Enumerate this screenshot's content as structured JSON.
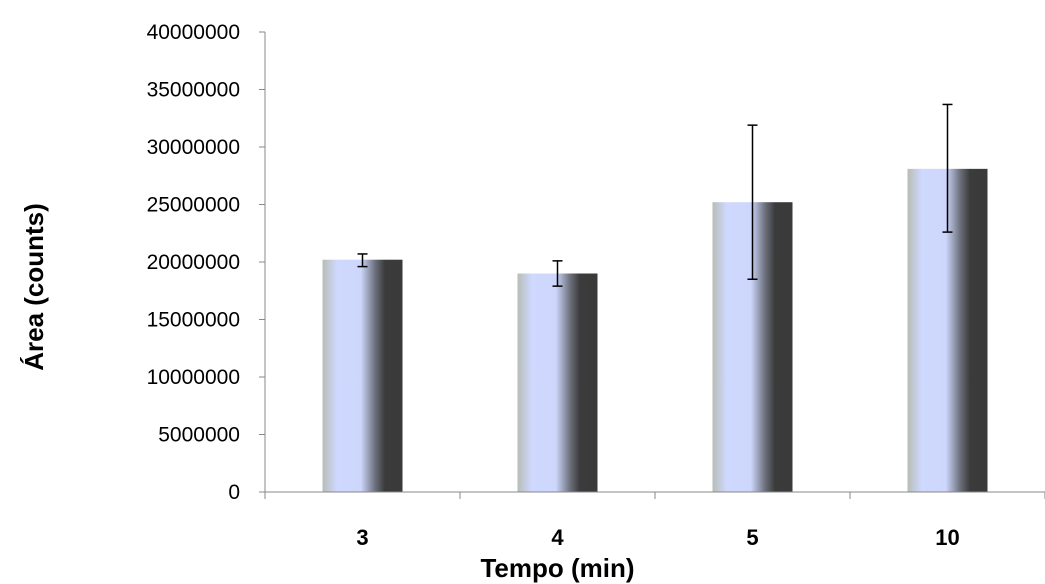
{
  "chart_data": {
    "type": "bar",
    "title": "",
    "xlabel": "Tempo (min)",
    "ylabel": "Área (counts)",
    "categories": [
      "3",
      "4",
      "5",
      "10"
    ],
    "values": [
      20200000,
      19000000,
      25200000,
      28100000
    ],
    "error_low": [
      19600000,
      17900000,
      18500000,
      22600000
    ],
    "error_high": [
      20700000,
      20100000,
      31900000,
      33700000
    ],
    "ylim": [
      0,
      40000000
    ],
    "yticks": [
      0,
      5000000,
      10000000,
      15000000,
      20000000,
      25000000,
      30000000,
      35000000,
      40000000
    ],
    "ytick_labels": [
      "0",
      "5000000",
      "10000000",
      "15000000",
      "20000000",
      "25000000",
      "30000000",
      "35000000",
      "40000000"
    ],
    "grid": false,
    "legend": "none",
    "bar_gradient": [
      "#c7ccc4",
      "#ccd8ff",
      "#cdd5f6",
      "#3a3a3a"
    ]
  }
}
